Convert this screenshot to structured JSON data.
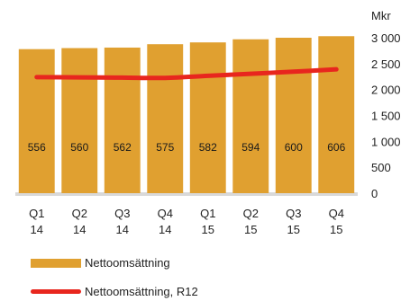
{
  "chart_data": {
    "type": "bar",
    "unit_label": "Mkr",
    "categories": [
      [
        "Q1",
        "14"
      ],
      [
        "Q2",
        "14"
      ],
      [
        "Q3",
        "14"
      ],
      [
        "Q4",
        "14"
      ],
      [
        "Q1",
        "15"
      ],
      [
        "Q2",
        "15"
      ],
      [
        "Q3",
        "15"
      ],
      [
        "Q4",
        "15"
      ]
    ],
    "series": [
      {
        "name": "Nettoomsättning",
        "kind": "bar",
        "color": "#E0A030",
        "values": [
          2780,
          2800,
          2810,
          2875,
          2910,
          2970,
          3000,
          3030
        ],
        "data_labels": [
          "556",
          "560",
          "562",
          "575",
          "582",
          "594",
          "600",
          "606"
        ]
      },
      {
        "name": "Nettoomsättning, R12",
        "kind": "line",
        "color": "#E8261E",
        "values": [
          2240,
          2235,
          2230,
          2225,
          2265,
          2305,
          2345,
          2390
        ]
      }
    ],
    "ylim": [
      0,
      3000
    ],
    "y_ticks": [
      "0",
      "500",
      "1 000",
      "1 500",
      "2 000",
      "2 500",
      "3 000"
    ],
    "y_axis_position": "right",
    "grid": false,
    "legend_position": "bottom-left"
  }
}
